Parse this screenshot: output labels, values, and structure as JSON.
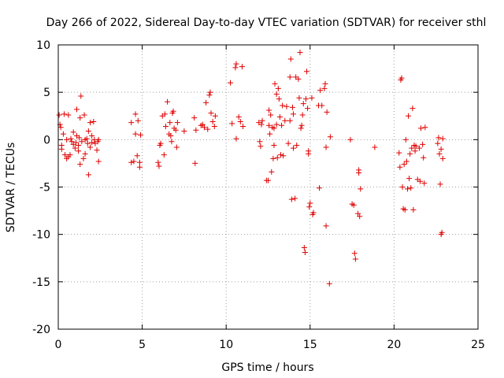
{
  "chart_data": {
    "type": "scatter",
    "title": "Day 266 of 2022, Sidereal Day-to-day VTEC variation (SDTVAR) for receiver sthl",
    "xlabel": "GPS time / hours",
    "ylabel": "SDTVAR / TECUs",
    "xlim": [
      0,
      25
    ],
    "ylim": [
      -20,
      10
    ],
    "xticks": [
      0,
      5,
      10,
      15,
      20,
      25
    ],
    "yticks": [
      -20,
      -15,
      -10,
      -5,
      0,
      5,
      10
    ],
    "xtick_labels": [
      "0",
      "5",
      "10",
      "15",
      "20",
      "25"
    ],
    "ytick_labels": [
      "-20",
      "-15",
      "-10",
      "-5",
      "0",
      "5",
      "10"
    ],
    "grid": true,
    "marker": "+",
    "color": "#e00000",
    "series": [
      {
        "name": "sthl",
        "points": [
          [
            0.05,
            2.6
          ],
          [
            0.1,
            1.6
          ],
          [
            0.15,
            1.3
          ],
          [
            0.2,
            -0.6
          ],
          [
            0.2,
            -1.0
          ],
          [
            0.3,
            0.6
          ],
          [
            0.35,
            2.7
          ],
          [
            0.4,
            -1.6
          ],
          [
            0.5,
            -2.0
          ],
          [
            0.5,
            0.0
          ],
          [
            0.6,
            -1.8
          ],
          [
            0.6,
            2.6
          ],
          [
            0.7,
            -1.6
          ],
          [
            0.75,
            0.1
          ],
          [
            0.8,
            -0.2
          ],
          [
            0.9,
            -0.5
          ],
          [
            0.9,
            0.8
          ],
          [
            1.0,
            -0.9
          ],
          [
            1.05,
            -0.3
          ],
          [
            1.1,
            0.4
          ],
          [
            1.1,
            3.2
          ],
          [
            1.2,
            -1.2
          ],
          [
            1.2,
            -0.6
          ],
          [
            1.25,
            0.2
          ],
          [
            1.3,
            2.3
          ],
          [
            1.35,
            4.6
          ],
          [
            1.3,
            -2.6
          ],
          [
            1.4,
            -0.2
          ],
          [
            1.5,
            -2.0
          ],
          [
            1.55,
            2.6
          ],
          [
            1.6,
            0.0
          ],
          [
            1.6,
            -1.5
          ],
          [
            1.7,
            0.1
          ],
          [
            1.75,
            -0.4
          ],
          [
            1.8,
            0.9
          ],
          [
            1.8,
            -3.7
          ],
          [
            1.9,
            -0.8
          ],
          [
            1.9,
            1.8
          ],
          [
            2.0,
            -0.3
          ],
          [
            2.0,
            0.4
          ],
          [
            2.1,
            1.9
          ],
          [
            2.15,
            0.0
          ],
          [
            2.2,
            -0.4
          ],
          [
            2.3,
            -1.1
          ],
          [
            2.35,
            -0.2
          ],
          [
            2.4,
            -2.3
          ],
          [
            2.4,
            0.0
          ],
          [
            4.35,
            -2.4
          ],
          [
            4.35,
            1.8
          ],
          [
            4.5,
            -2.3
          ],
          [
            4.6,
            2.7
          ],
          [
            4.6,
            0.6
          ],
          [
            4.7,
            -1.7
          ],
          [
            4.75,
            2.0
          ],
          [
            4.85,
            -2.4
          ],
          [
            4.85,
            -2.9
          ],
          [
            4.9,
            0.5
          ],
          [
            5.95,
            -2.4
          ],
          [
            6.0,
            -2.8
          ],
          [
            6.05,
            -0.6
          ],
          [
            6.1,
            -0.4
          ],
          [
            6.2,
            2.5
          ],
          [
            6.3,
            -1.6
          ],
          [
            6.35,
            2.7
          ],
          [
            6.4,
            1.4
          ],
          [
            6.5,
            4.0
          ],
          [
            6.6,
            0.6
          ],
          [
            6.65,
            1.8
          ],
          [
            6.7,
            0.4
          ],
          [
            6.75,
            -0.2
          ],
          [
            6.8,
            2.8
          ],
          [
            6.85,
            3.0
          ],
          [
            6.9,
            1.2
          ],
          [
            7.0,
            1.0
          ],
          [
            7.05,
            -0.8
          ],
          [
            7.1,
            1.8
          ],
          [
            7.5,
            0.9
          ],
          [
            8.1,
            2.3
          ],
          [
            8.15,
            -2.5
          ],
          [
            8.2,
            1.0
          ],
          [
            8.5,
            1.5
          ],
          [
            8.6,
            1.6
          ],
          [
            8.7,
            1.3
          ],
          [
            8.8,
            3.9
          ],
          [
            8.9,
            1.1
          ],
          [
            9.0,
            4.7
          ],
          [
            9.05,
            5.0
          ],
          [
            9.1,
            2.8
          ],
          [
            9.2,
            1.9
          ],
          [
            9.3,
            1.4
          ],
          [
            9.35,
            2.5
          ],
          [
            10.25,
            6.0
          ],
          [
            10.35,
            1.7
          ],
          [
            10.55,
            7.6
          ],
          [
            10.6,
            8.0
          ],
          [
            10.6,
            0.1
          ],
          [
            10.75,
            2.4
          ],
          [
            10.85,
            1.9
          ],
          [
            10.95,
            7.7
          ],
          [
            11.0,
            1.4
          ],
          [
            11.95,
            1.8
          ],
          [
            12.0,
            -0.2
          ],
          [
            12.05,
            -0.7
          ],
          [
            12.1,
            1.6
          ],
          [
            12.15,
            2.0
          ],
          [
            12.4,
            -4.3
          ],
          [
            12.5,
            -4.3
          ],
          [
            12.55,
            3.1
          ],
          [
            12.55,
            1.5
          ],
          [
            12.6,
            0.6
          ],
          [
            12.65,
            2.6
          ],
          [
            12.7,
            -3.4
          ],
          [
            12.75,
            1.3
          ],
          [
            12.8,
            -2.0
          ],
          [
            12.85,
            1.2
          ],
          [
            12.85,
            -0.6
          ],
          [
            12.9,
            5.9
          ],
          [
            13.0,
            4.8
          ],
          [
            13.0,
            1.6
          ],
          [
            13.05,
            -1.9
          ],
          [
            13.1,
            5.4
          ],
          [
            13.15,
            4.3
          ],
          [
            13.2,
            2.4
          ],
          [
            13.25,
            -1.6
          ],
          [
            13.3,
            1.5
          ],
          [
            13.35,
            3.6
          ],
          [
            13.4,
            -1.7
          ],
          [
            13.5,
            2.0
          ],
          [
            13.6,
            3.5
          ],
          [
            13.7,
            -0.4
          ],
          [
            13.8,
            6.6
          ],
          [
            13.8,
            2.0
          ],
          [
            13.85,
            8.5
          ],
          [
            13.9,
            -6.3
          ],
          [
            13.95,
            3.4
          ],
          [
            14.0,
            -0.9
          ],
          [
            14.0,
            2.7
          ],
          [
            14.1,
            -6.2
          ],
          [
            14.15,
            6.6
          ],
          [
            14.2,
            -0.6
          ],
          [
            14.3,
            6.4
          ],
          [
            14.35,
            4.4
          ],
          [
            14.4,
            9.2
          ],
          [
            14.45,
            1.2
          ],
          [
            14.5,
            1.5
          ],
          [
            14.55,
            2.6
          ],
          [
            14.6,
            3.8
          ],
          [
            14.65,
            -11.4
          ],
          [
            14.7,
            -11.9
          ],
          [
            14.75,
            4.3
          ],
          [
            14.8,
            7.2
          ],
          [
            14.85,
            3.3
          ],
          [
            14.9,
            -1.2
          ],
          [
            14.9,
            -1.5
          ],
          [
            14.95,
            -7.1
          ],
          [
            15.0,
            -6.7
          ],
          [
            15.1,
            4.4
          ],
          [
            15.15,
            -7.9
          ],
          [
            15.2,
            -7.7
          ],
          [
            15.5,
            3.6
          ],
          [
            15.55,
            -5.1
          ],
          [
            15.6,
            5.2
          ],
          [
            15.7,
            3.6
          ],
          [
            15.85,
            5.4
          ],
          [
            15.9,
            5.9
          ],
          [
            15.95,
            -9.1
          ],
          [
            15.95,
            -0.8
          ],
          [
            16.0,
            2.9
          ],
          [
            16.15,
            -15.2
          ],
          [
            16.2,
            0.3
          ],
          [
            17.4,
            0.0
          ],
          [
            17.5,
            -6.8
          ],
          [
            17.6,
            -6.9
          ],
          [
            17.65,
            -12.0
          ],
          [
            17.7,
            -12.6
          ],
          [
            17.85,
            -7.8
          ],
          [
            17.9,
            -3.2
          ],
          [
            17.9,
            -3.5
          ],
          [
            17.95,
            -8.1
          ],
          [
            18.0,
            -5.2
          ],
          [
            18.85,
            -0.8
          ],
          [
            20.3,
            -1.4
          ],
          [
            20.35,
            -2.9
          ],
          [
            20.4,
            6.3
          ],
          [
            20.45,
            6.5
          ],
          [
            20.5,
            -5.0
          ],
          [
            20.55,
            -7.3
          ],
          [
            20.6,
            -2.6
          ],
          [
            20.65,
            -7.4
          ],
          [
            20.7,
            0.0
          ],
          [
            20.75,
            -2.3
          ],
          [
            20.8,
            -5.2
          ],
          [
            20.85,
            2.5
          ],
          [
            20.9,
            -4.1
          ],
          [
            20.95,
            -1.5
          ],
          [
            21.0,
            -5.1
          ],
          [
            21.05,
            -0.9
          ],
          [
            21.1,
            3.3
          ],
          [
            21.15,
            -7.4
          ],
          [
            21.2,
            -0.6
          ],
          [
            21.25,
            -1.2
          ],
          [
            21.3,
            -0.7
          ],
          [
            21.4,
            -4.2
          ],
          [
            21.5,
            -0.9
          ],
          [
            21.55,
            -4.4
          ],
          [
            21.6,
            1.2
          ],
          [
            21.7,
            -0.5
          ],
          [
            21.75,
            -1.9
          ],
          [
            21.8,
            -4.6
          ],
          [
            21.85,
            1.3
          ],
          [
            22.6,
            -0.4
          ],
          [
            22.65,
            0.2
          ],
          [
            22.7,
            -1.5
          ],
          [
            22.75,
            -4.7
          ],
          [
            22.8,
            -1.0
          ],
          [
            22.8,
            -10.0
          ],
          [
            22.85,
            -9.8
          ],
          [
            22.9,
            0.1
          ],
          [
            22.9,
            -2.0
          ]
        ]
      }
    ]
  }
}
